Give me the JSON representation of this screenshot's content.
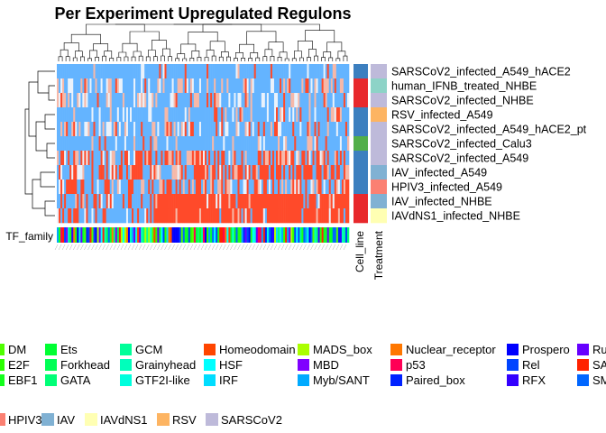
{
  "chart_data": {
    "type": "heatmap",
    "title": "Per Experiment Upregulated Regulons",
    "rows": [
      {
        "label": "SARSCoV2_infected_A549_hACE2",
        "cell_line": "A549",
        "treatment": "SARSCoV2",
        "high_fraction": 0.03,
        "mid_fraction": 0.12
      },
      {
        "label": "human_IFNB_treated_NHBE",
        "cell_line": "NHBE",
        "treatment": "IFNB",
        "high_fraction": 0.08,
        "mid_fraction": 0.35
      },
      {
        "label": "SARSCoV2_infected_NHBE",
        "cell_line": "NHBE",
        "treatment": "SARSCoV2",
        "high_fraction": 0.05,
        "mid_fraction": 0.35
      },
      {
        "label": "RSV_infected_A549",
        "cell_line": "A549",
        "treatment": "RSV",
        "high_fraction": 0.05,
        "mid_fraction": 0.2
      },
      {
        "label": "SARSCoV2_infected_A549_hACE2_pt",
        "cell_line": "A549",
        "treatment": "SARSCoV2",
        "high_fraction": 0.12,
        "mid_fraction": 0.3
      },
      {
        "label": "SARSCoV2_infected_Calu3",
        "cell_line": "Calu3",
        "treatment": "SARSCoV2",
        "high_fraction": 0.04,
        "mid_fraction": 0.15
      },
      {
        "label": "SARSCoV2_infected_A549",
        "cell_line": "A549",
        "treatment": "SARSCoV2",
        "high_fraction": 0.35,
        "mid_fraction": 0.3
      },
      {
        "label": "IAV_infected_A549",
        "cell_line": "A549",
        "treatment": "IAV",
        "high_fraction": 0.45,
        "mid_fraction": 0.25
      },
      {
        "label": "HPIV3_infected_A549",
        "cell_line": "A549",
        "treatment": "HPIV3",
        "high_fraction": 0.3,
        "mid_fraction": 0.3
      },
      {
        "label": "IAV_infected_NHBE",
        "cell_line": "NHBE",
        "treatment": "IAV",
        "high_fraction": 0.7,
        "mid_fraction": 0.1
      },
      {
        "label": "IAVdNS1_infected_NHBE",
        "cell_line": "NHBE",
        "treatment": "IAVdNS1",
        "high_fraction": 0.7,
        "mid_fraction": 0.1
      }
    ],
    "column_count": 160,
    "color_scale": {
      "low": "#64b4ff",
      "mid": "#ffffff",
      "high": "#ff4a2a"
    },
    "annotation_labels": {
      "row_annotation": "TF_family",
      "cell_line": "Cell_line",
      "treatment": "Treatment"
    },
    "cell_line_colors": {
      "A549": "#3c7fbf",
      "NHBE": "#e8282c",
      "Calu3": "#52af4a"
    },
    "tf_family_legend": [
      {
        "name": "DM",
        "color": "#4fff00"
      },
      {
        "name": "E2F",
        "color": "#2bff00"
      },
      {
        "name": "EBF1",
        "color": "#14ff1c"
      },
      {
        "name": "Ets",
        "color": "#00ff33"
      },
      {
        "name": "Forkhead",
        "color": "#00ff55"
      },
      {
        "name": "GATA",
        "color": "#00ff77"
      },
      {
        "name": "GCM",
        "color": "#00ff99"
      },
      {
        "name": "Grainyhead",
        "color": "#00ffbb"
      },
      {
        "name": "GTF2I-like",
        "color": "#00ffdd"
      },
      {
        "name": "Homeodomain",
        "color": "#ff4500"
      },
      {
        "name": "HSF",
        "color": "#00ffff"
      },
      {
        "name": "IRF",
        "color": "#00ddff"
      },
      {
        "name": "MADS_box",
        "color": "#aaff00"
      },
      {
        "name": "MBD",
        "color": "#8000ff"
      },
      {
        "name": "Myb/SANT",
        "color": "#00aaff"
      },
      {
        "name": "Nuclear_receptor",
        "color": "#ff7700"
      },
      {
        "name": "p53",
        "color": "#ff0055"
      },
      {
        "name": "Paired_box",
        "color": "#0022ff"
      },
      {
        "name": "Prospero",
        "color": "#0000ff"
      },
      {
        "name": "Rel",
        "color": "#0044ff"
      },
      {
        "name": "RFX",
        "color": "#3300ff"
      },
      {
        "name": "Ru",
        "color": "#6600ff"
      },
      {
        "name": "SA",
        "color": "#ff2200"
      },
      {
        "name": "SM",
        "color": "#0066ff"
      }
    ],
    "treatment_legend": [
      {
        "name": "HPIV3",
        "color": "#fb8072"
      },
      {
        "name": "IAV",
        "color": "#80b1d3"
      },
      {
        "name": "IAVdNS1",
        "color": "#ffffb3"
      },
      {
        "name": "RSV",
        "color": "#fdb462"
      },
      {
        "name": "SARSCoV2",
        "color": "#bebada"
      }
    ],
    "treatment_colors_extra": {
      "IFNB": "#8dd3c7"
    }
  }
}
